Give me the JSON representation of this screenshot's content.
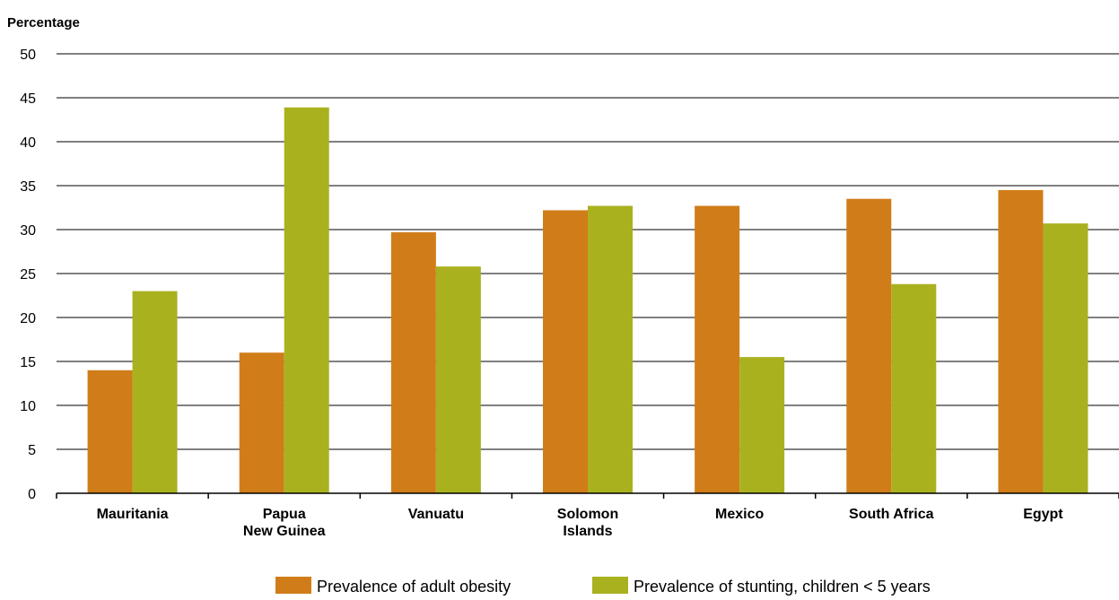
{
  "chart_data": {
    "type": "bar",
    "title": "",
    "xlabel": "",
    "ylabel": "Percentage",
    "ylim": [
      0,
      50
    ],
    "yticks": [
      0,
      5,
      10,
      15,
      20,
      25,
      30,
      35,
      40,
      45,
      50
    ],
    "grid": true,
    "legend_position": "bottom",
    "categories": [
      [
        "Mauritania"
      ],
      [
        "Papua",
        "New Guinea"
      ],
      [
        "Vanuatu"
      ],
      [
        "Solomon",
        "Islands"
      ],
      [
        "Mexico"
      ],
      [
        "South Africa"
      ],
      [
        "Egypt"
      ]
    ],
    "series": [
      {
        "name": "Prevalence of adult obesity",
        "color": "#d07d19",
        "values": [
          14.0,
          16.0,
          29.7,
          32.2,
          32.7,
          33.5,
          34.5
        ]
      },
      {
        "name": "Prevalence of stunting, children < 5 years",
        "color": "#a9b11f",
        "values": [
          23.0,
          43.9,
          25.8,
          32.7,
          15.5,
          23.8,
          30.7
        ]
      }
    ]
  }
}
